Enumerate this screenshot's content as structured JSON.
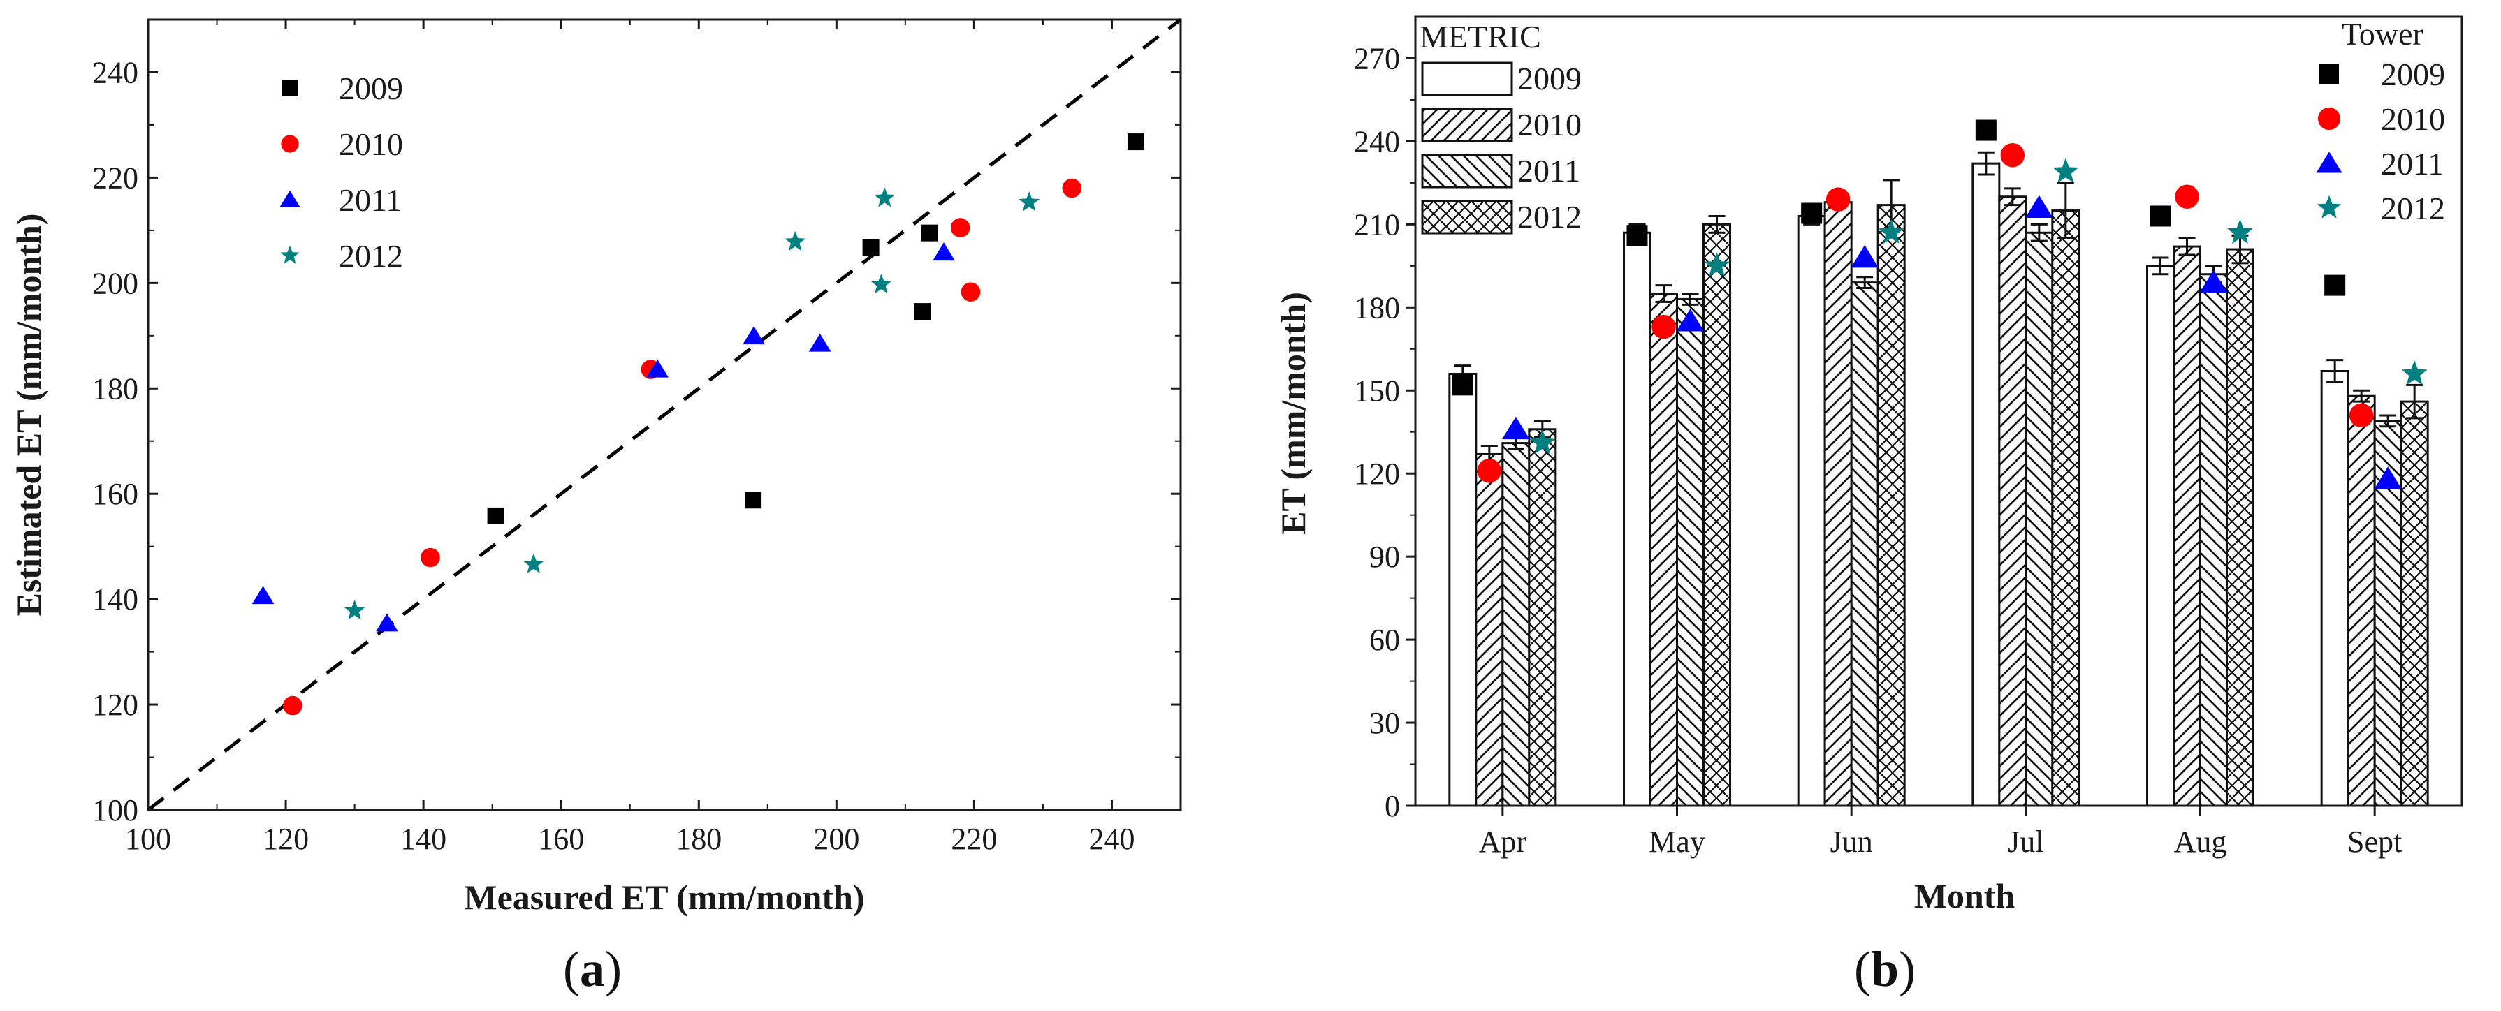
{
  "colors": {
    "y2009": "#000000",
    "y2010": "#ff0000",
    "y2011": "#0000ff",
    "y2012": "#008080",
    "axis": "#1a1a1a"
  },
  "chart_data": [
    {
      "type": "scatter",
      "panel_label": "a",
      "xlabel": "Measured ET (mm/month)",
      "ylabel": "Estimated ET (mm/month)",
      "xlim": [
        100,
        250
      ],
      "ylim": [
        100,
        250
      ],
      "x_ticks": [
        "100",
        "120",
        "140",
        "160",
        "180",
        "200",
        "220",
        "240"
      ],
      "y_ticks": [
        "100",
        "120",
        "140",
        "160",
        "180",
        "200",
        "220",
        "240"
      ],
      "reference_line": "1:1 dashed",
      "legend_location": "top-left",
      "series": [
        {
          "name": "2009",
          "marker": "square",
          "color": "#000000",
          "points": [
            [
              150.5,
              155.8
            ],
            [
              187.9,
              158.8
            ],
            [
              205,
              206.8
            ],
            [
              212.5,
              194.6
            ],
            [
              213.5,
              209.5
            ],
            [
              243.5,
              226.8
            ]
          ]
        },
        {
          "name": "2010",
          "marker": "circle",
          "color": "#ff0000",
          "points": [
            [
              121,
              119.8
            ],
            [
              141,
              147.9
            ],
            [
              173,
              183.6
            ],
            [
              218,
              210.5
            ],
            [
              219.5,
              198.3
            ],
            [
              234.2,
              218
            ]
          ]
        },
        {
          "name": "2011",
          "marker": "triangle",
          "color": "#0000ff",
          "points": [
            [
              116.7,
              140.6
            ],
            [
              134.7,
              135.4
            ],
            [
              174,
              183.6
            ],
            [
              188,
              189.9
            ],
            [
              197.6,
              188.5
            ],
            [
              215.6,
              205.8
            ]
          ]
        },
        {
          "name": "2012",
          "marker": "star",
          "color": "#008080",
          "points": [
            [
              130,
              137.8
            ],
            [
              156,
              146.6
            ],
            [
              194,
              207.8
            ],
            [
              206.5,
              199.7
            ],
            [
              207,
              216.1
            ],
            [
              228,
              215.3
            ]
          ]
        }
      ]
    },
    {
      "type": "bar",
      "panel_label": "b",
      "xlabel": "Month",
      "ylabel": "ET (mm/month)",
      "ylim": [
        0,
        285
      ],
      "y_ticks": [
        "0",
        "30",
        "60",
        "90",
        "120",
        "150",
        "180",
        "210",
        "240",
        "270"
      ],
      "categories": [
        "Apr",
        "May",
        "Jun",
        "Jul",
        "Aug",
        "Sept"
      ],
      "bar_legend_title": "METRIC",
      "marker_legend_title": "Tower",
      "bar_series": [
        {
          "name": "2009",
          "pattern": "none",
          "values": [
            156,
            207,
            213,
            232,
            195,
            157
          ],
          "errors": [
            3,
            3,
            3,
            4,
            3,
            4
          ]
        },
        {
          "name": "2010",
          "pattern": "forward-hatch",
          "values": [
            127,
            185,
            218,
            220,
            202,
            148
          ],
          "errors": [
            3,
            3,
            2,
            3,
            3,
            2
          ]
        },
        {
          "name": "2011",
          "pattern": "back-hatch",
          "values": [
            131,
            183,
            189,
            207,
            192,
            139
          ],
          "errors": [
            2,
            2,
            2,
            3,
            3,
            2
          ]
        },
        {
          "name": "2012",
          "pattern": "crosshatch",
          "values": [
            136,
            210,
            217,
            215,
            201,
            146
          ],
          "errors": [
            3,
            3,
            9,
            10,
            5,
            6
          ]
        }
      ],
      "marker_series": [
        {
          "name": "2009",
          "marker": "square",
          "color": "#000000",
          "values": [
            152,
            206,
            214,
            244,
            213,
            188
          ]
        },
        {
          "name": "2010",
          "marker": "circle",
          "color": "#ff0000",
          "values": [
            121,
            173,
            219,
            235,
            220,
            141
          ]
        },
        {
          "name": "2011",
          "marker": "triangle",
          "color": "#0000ff",
          "values": [
            136,
            175,
            198,
            216,
            189,
            118
          ]
        },
        {
          "name": "2012",
          "marker": "star",
          "color": "#008080",
          "values": [
            131,
            195,
            207,
            229,
            207,
            156
          ]
        }
      ]
    }
  ]
}
